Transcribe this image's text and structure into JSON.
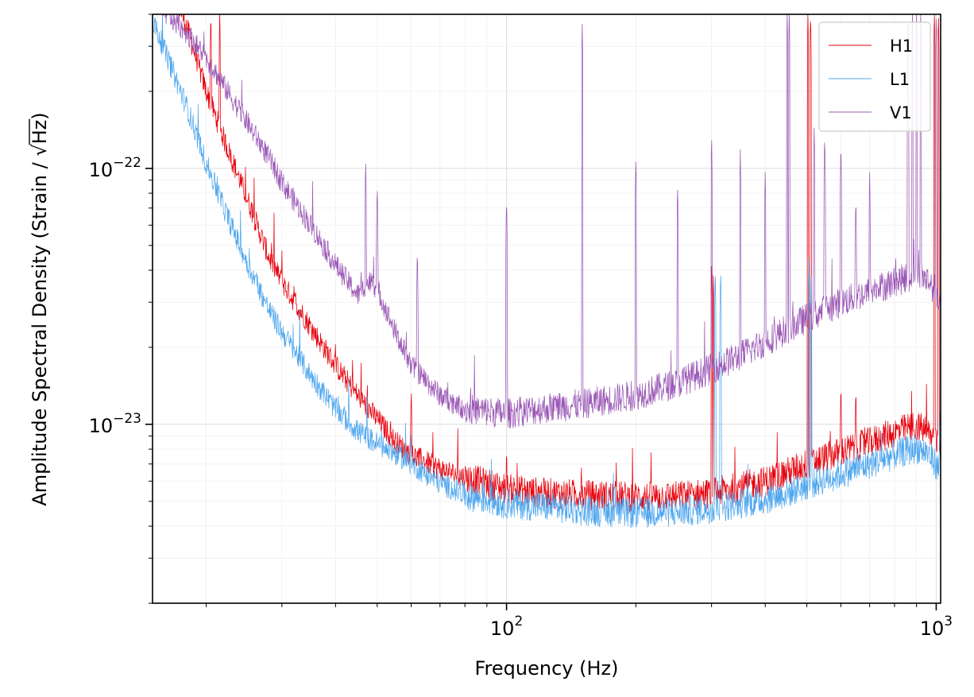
{
  "chart_data": {
    "type": "line",
    "xlabel": "Frequency (Hz)",
    "ylabel_main": "Amplitude Spectral Density (Strain / ",
    "ylabel_sqrt": "Hz",
    "ylabel_close": ")",
    "xscale": "log",
    "yscale": "log",
    "xlim": [
      15,
      1024
    ],
    "ylim": [
      2e-24,
      4e-22
    ],
    "x_ticks": [
      {
        "value": 100,
        "base": "10",
        "exp": "2"
      },
      {
        "value": 1000,
        "base": "10",
        "exp": "3"
      }
    ],
    "y_ticks": [
      {
        "value": 1e-23,
        "base": "10",
        "exp": "−23"
      },
      {
        "value": 1e-22,
        "base": "10",
        "exp": "−22"
      }
    ],
    "grid": true,
    "legend_position": "top-right",
    "series": [
      {
        "name": "H1",
        "color": "#e8000b",
        "x": [
          15,
          18,
          20,
          22,
          25,
          28,
          30,
          35,
          40,
          45,
          50,
          55,
          60,
          70,
          80,
          100,
          120,
          150,
          200,
          250,
          300,
          350,
          400,
          450,
          500,
          550,
          600,
          700,
          800,
          900,
          950,
          1000,
          1024
        ],
        "y": [
          8e-22,
          3.6e-22,
          2e-22,
          1.3e-22,
          7.5e-23,
          4.5e-23,
          3.6e-23,
          2.4e-23,
          1.7e-23,
          1.3e-23,
          1.05e-23,
          8.6e-24,
          7.6e-24,
          6.7e-24,
          6.2e-24,
          5.6e-24,
          5.4e-24,
          5.3e-24,
          5.2e-24,
          5.25e-24,
          5.4e-24,
          5.7e-24,
          6e-24,
          6.5e-24,
          7e-24,
          7.4e-24,
          7.8e-24,
          8.5e-24,
          9.3e-24,
          9.9e-24,
          9.4e-24,
          8.6e-24,
          7.8e-24
        ],
        "lines": [
          {
            "f": 20.5,
            "a": 4.2e-22
          },
          {
            "f": 21.5,
            "a": 4.2e-22
          },
          {
            "f": 27,
            "a": 6e-23
          },
          {
            "f": 30,
            "a": 5e-23
          },
          {
            "f": 32,
            "a": 3.6e-23
          },
          {
            "f": 40,
            "a": 2.2e-23
          },
          {
            "f": 60,
            "a": 1.45e-23
          },
          {
            "f": 100,
            "a": 8.5e-24
          },
          {
            "f": 180,
            "a": 7.3e-24
          },
          {
            "f": 300,
            "a": 4.5e-23
          },
          {
            "f": 303,
            "a": 4e-23
          },
          {
            "f": 503,
            "a": 4.2e-22
          },
          {
            "f": 510,
            "a": 4.2e-22
          },
          {
            "f": 600,
            "a": 1.5e-23
          },
          {
            "f": 650,
            "a": 1.45e-23
          },
          {
            "f": 990,
            "a": 4.2e-22
          },
          {
            "f": 1012,
            "a": 4.2e-22
          }
        ]
      },
      {
        "name": "L1",
        "color": "#4ea6ee",
        "x": [
          15,
          18,
          20,
          22,
          25,
          28,
          30,
          35,
          40,
          45,
          50,
          55,
          60,
          70,
          80,
          100,
          120,
          150,
          200,
          250,
          300,
          350,
          400,
          450,
          500,
          550,
          600,
          700,
          800,
          900,
          950,
          1000,
          1024
        ],
        "y": [
          3.8e-22,
          1.75e-22,
          1.05e-22,
          7e-23,
          4.2e-23,
          2.8e-23,
          2.3e-23,
          1.55e-23,
          1.15e-23,
          9.4e-24,
          8.4e-24,
          7.7e-24,
          7e-24,
          5.9e-24,
          5.3e-24,
          4.9e-24,
          4.8e-24,
          4.6e-24,
          4.5e-24,
          4.55e-24,
          4.7e-24,
          4.9e-24,
          5.1e-24,
          5.4e-24,
          5.8e-24,
          6.1e-24,
          6.4e-24,
          7e-24,
          7.6e-24,
          8.1e-24,
          7.8e-24,
          7e-24,
          6.2e-24
        ],
        "lines": [
          {
            "f": 60,
            "a": 1e-23
          },
          {
            "f": 306,
            "a": 4.2e-23
          },
          {
            "f": 315,
            "a": 4.2e-23
          },
          {
            "f": 505,
            "a": 4.5e-23
          },
          {
            "f": 512,
            "a": 4e-23
          },
          {
            "f": 1020,
            "a": 1.2e-23
          }
        ]
      },
      {
        "name": "V1",
        "color": "#9b59b6",
        "x": [
          15,
          18,
          20,
          22,
          25,
          28,
          30,
          35,
          40,
          45,
          48,
          50,
          55,
          60,
          70,
          80,
          100,
          120,
          150,
          200,
          250,
          300,
          350,
          400,
          450,
          500,
          550,
          600,
          700,
          800,
          900,
          950,
          1000,
          1024
        ],
        "y": [
          4.5e-22,
          3.4e-22,
          2.7e-22,
          2.1e-22,
          1.5e-22,
          1.1e-22,
          8.8e-23,
          6e-23,
          4.2e-23,
          3.2e-23,
          3.6e-23,
          3.4e-23,
          2.3e-23,
          1.7e-23,
          1.3e-23,
          1.15e-23,
          1.1e-23,
          1.15e-23,
          1.2e-23,
          1.3e-23,
          1.45e-23,
          1.65e-23,
          1.85e-23,
          2.1e-23,
          2.35e-23,
          2.6e-23,
          2.8e-23,
          3e-23,
          3.3e-23,
          3.6e-23,
          3.85e-23,
          3.7e-23,
          3.3e-23,
          3e-23
        ],
        "lines": [
          {
            "f": 47,
            "a": 1.1e-22
          },
          {
            "f": 50,
            "a": 9e-23
          },
          {
            "f": 62,
            "a": 5e-23
          },
          {
            "f": 100,
            "a": 8e-23
          },
          {
            "f": 150,
            "a": 3.8e-22
          },
          {
            "f": 200,
            "a": 1.15e-22
          },
          {
            "f": 250,
            "a": 9e-23
          },
          {
            "f": 300,
            "a": 1.4e-22
          },
          {
            "f": 350,
            "a": 1.2e-22
          },
          {
            "f": 400,
            "a": 1e-22
          },
          {
            "f": 450,
            "a": 4.2e-22
          },
          {
            "f": 455,
            "a": 4.2e-22
          },
          {
            "f": 520,
            "a": 1.5e-22
          },
          {
            "f": 550,
            "a": 1.4e-22
          },
          {
            "f": 600,
            "a": 1.3e-22
          },
          {
            "f": 650,
            "a": 8e-23
          },
          {
            "f": 700,
            "a": 1e-22
          },
          {
            "f": 860,
            "a": 4.2e-22
          },
          {
            "f": 880,
            "a": 4.2e-22
          },
          {
            "f": 900,
            "a": 4.2e-22
          },
          {
            "f": 920,
            "a": 4.2e-22
          },
          {
            "f": 1000,
            "a": 4.2e-22
          }
        ]
      }
    ]
  }
}
